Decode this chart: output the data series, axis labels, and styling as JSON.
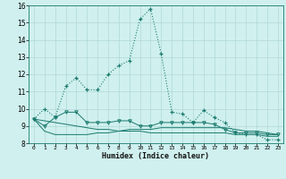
{
  "xlabel": "Humidex (Indice chaleur)",
  "x": [
    0,
    1,
    2,
    3,
    4,
    5,
    6,
    7,
    8,
    9,
    10,
    11,
    12,
    13,
    14,
    15,
    16,
    17,
    18,
    19,
    20,
    21,
    22,
    23
  ],
  "line1": [
    9.4,
    10.0,
    9.5,
    11.3,
    11.8,
    11.1,
    11.1,
    12.0,
    12.5,
    12.8,
    15.2,
    15.8,
    13.2,
    9.8,
    9.7,
    9.2,
    9.9,
    9.5,
    9.2,
    8.6,
    8.5,
    8.5,
    8.2,
    8.2
  ],
  "line2": [
    9.4,
    9.0,
    9.5,
    9.8,
    9.8,
    9.2,
    9.2,
    9.2,
    9.3,
    9.3,
    9.0,
    9.0,
    9.2,
    9.2,
    9.2,
    9.2,
    9.2,
    9.1,
    8.8,
    8.6,
    8.6,
    8.6,
    8.5,
    8.5
  ],
  "line3": [
    9.4,
    8.7,
    8.5,
    8.5,
    8.5,
    8.5,
    8.6,
    8.6,
    8.7,
    8.8,
    8.8,
    8.8,
    8.9,
    8.9,
    8.9,
    8.9,
    8.9,
    8.9,
    8.9,
    8.8,
    8.7,
    8.7,
    8.6,
    8.5
  ],
  "line4": [
    9.4,
    9.3,
    9.2,
    9.1,
    9.0,
    8.9,
    8.8,
    8.8,
    8.7,
    8.7,
    8.7,
    8.6,
    8.6,
    8.6,
    8.6,
    8.6,
    8.6,
    8.6,
    8.6,
    8.5,
    8.5,
    8.5,
    8.4,
    8.4
  ],
  "bg_color": "#cff0ee",
  "grid_color": "#b0d8d5",
  "line_color": "#1a7a6e",
  "ylim": [
    8,
    16
  ],
  "xlim": [
    -0.5,
    23.5
  ],
  "yticks": [
    8,
    9,
    10,
    11,
    12,
    13,
    14,
    15,
    16
  ]
}
